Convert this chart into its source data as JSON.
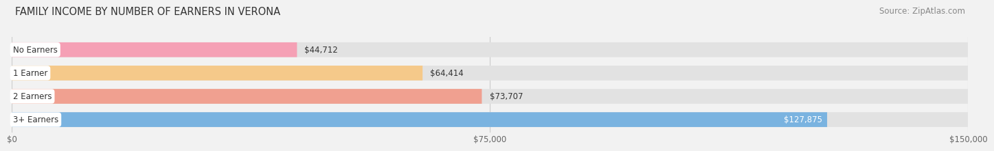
{
  "title": "FAMILY INCOME BY NUMBER OF EARNERS IN VERONA",
  "source": "Source: ZipAtlas.com",
  "categories": [
    "No Earners",
    "1 Earner",
    "2 Earners",
    "3+ Earners"
  ],
  "values": [
    44712,
    64414,
    73707,
    127875
  ],
  "bar_colors": [
    "#f5a0b5",
    "#f5c98a",
    "#f0a090",
    "#7ab3e0"
  ],
  "label_colors": [
    "#333333",
    "#333333",
    "#333333",
    "#ffffff"
  ],
  "value_labels": [
    "$44,712",
    "$64,414",
    "$73,707",
    "$127,875"
  ],
  "xmax": 150000,
  "xticks": [
    0,
    75000,
    150000
  ],
  "xticklabels": [
    "$0",
    "$75,000",
    "$150,000"
  ],
  "background_color": "#f2f2f2",
  "bar_bg_color": "#e2e2e2",
  "title_fontsize": 10.5,
  "source_fontsize": 8.5,
  "label_fontsize": 8.5,
  "value_fontsize": 8.5
}
